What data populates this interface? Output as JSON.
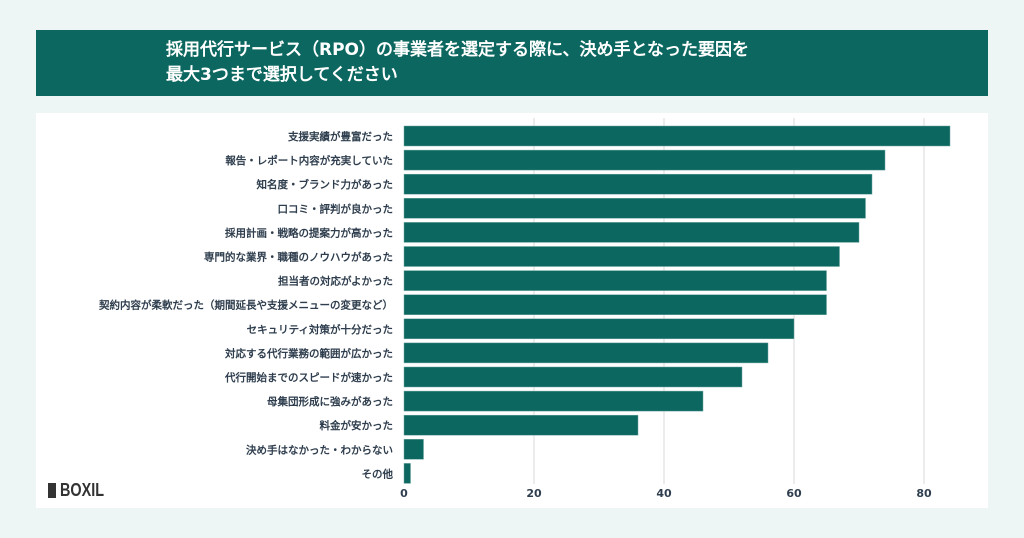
{
  "title_lines": [
    "採用代行サービス（RPO）の事業者を選定する際に、決め手となった要因を",
    "最大3つまで選択してください"
  ],
  "logo": "BOXIL",
  "chart_data": {
    "type": "bar",
    "orientation": "horizontal",
    "categories": [
      "支援実績が豊富だった",
      "報告・レポート内容が充実していた",
      "知名度・ブランド力があった",
      "口コミ・評判が良かった",
      "採用計画・戦略の提案力が高かった",
      "専門的な業界・職種のノウハウがあった",
      "担当者の対応がよかった",
      "契約内容が柔軟だった（期間延長や支援メニューの変更など）",
      "セキュリティ対策が十分だった",
      "対応する代行業務の範囲が広かった",
      "代行開始までのスピードが速かった",
      "母集団形成に強みがあった",
      "料金が安かった",
      "決め手はなかった・わからない",
      "その他"
    ],
    "values": [
      84,
      74,
      72,
      71,
      70,
      67,
      65,
      65,
      60,
      56,
      52,
      46,
      36,
      3,
      1
    ],
    "xlim": [
      0,
      85
    ],
    "xticks": [
      "0",
      "20",
      "40",
      "60",
      "80"
    ],
    "grid": true,
    "bar_color": "#0b675f",
    "title": "採用代行サービス（RPO）の事業者を選定する際に、決め手となった要因を最大3つまで選択してください"
  }
}
